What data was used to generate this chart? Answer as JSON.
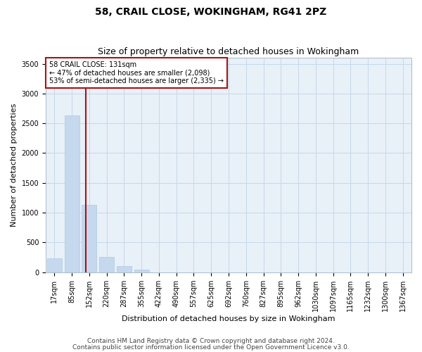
{
  "title1": "58, CRAIL CLOSE, WOKINGHAM, RG41 2PZ",
  "title2": "Size of property relative to detached houses in Wokingham",
  "xlabel": "Distribution of detached houses by size in Wokingham",
  "ylabel": "Number of detached properties",
  "bar_labels": [
    "17sqm",
    "85sqm",
    "152sqm",
    "220sqm",
    "287sqm",
    "355sqm",
    "422sqm",
    "490sqm",
    "557sqm",
    "625sqm",
    "692sqm",
    "760sqm",
    "827sqm",
    "895sqm",
    "962sqm",
    "1030sqm",
    "1097sqm",
    "1165sqm",
    "1232sqm",
    "1300sqm",
    "1367sqm"
  ],
  "bar_values": [
    230,
    2630,
    1130,
    260,
    100,
    45,
    0,
    0,
    0,
    0,
    0,
    0,
    0,
    0,
    0,
    0,
    0,
    0,
    0,
    0,
    0
  ],
  "bar_color": "#c5d8ee",
  "bar_edge_color": "#b0c8e0",
  "ylim": [
    0,
    3600
  ],
  "yticks": [
    0,
    500,
    1000,
    1500,
    2000,
    2500,
    3000,
    3500
  ],
  "property_line_x": 1.82,
  "property_line_color": "#aa1111",
  "annotation_text": "58 CRAIL CLOSE: 131sqm\n← 47% of detached houses are smaller (2,098)\n53% of semi-detached houses are larger (2,335) →",
  "annotation_box_color": "#aa1111",
  "footer1": "Contains HM Land Registry data © Crown copyright and database right 2024.",
  "footer2": "Contains public sector information licensed under the Open Government Licence v3.0.",
  "bg_color": "#ffffff",
  "plot_bg_color": "#e8f0f8",
  "grid_color": "#c8d8e8",
  "title1_fontsize": 10,
  "title2_fontsize": 9,
  "xlabel_fontsize": 8,
  "ylabel_fontsize": 8,
  "tick_fontsize": 7,
  "annotation_fontsize": 7,
  "footer_fontsize": 6.5
}
